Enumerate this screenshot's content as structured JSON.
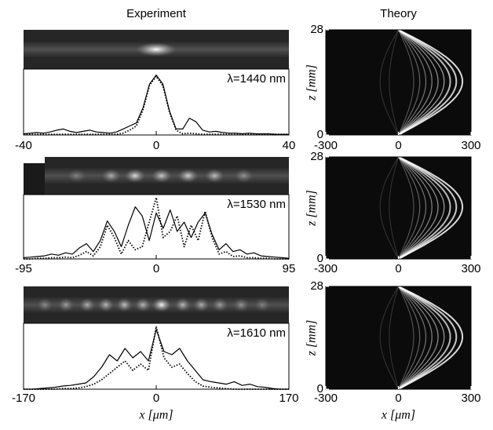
{
  "chart_data": [
    {
      "type": "line",
      "title": "Experiment",
      "annotation": "λ=1440 nm",
      "x": [
        -40,
        -38,
        -36,
        -34,
        -32,
        -30,
        -28,
        -26,
        -24,
        -22,
        -20,
        -18,
        -16,
        -14,
        -12,
        -10,
        -8,
        -6,
        -4,
        -2,
        0,
        2,
        4,
        6,
        8,
        10,
        12,
        14,
        16,
        18,
        20,
        22,
        24,
        26,
        28,
        30,
        32,
        34,
        36,
        38,
        40
      ],
      "series": [
        {
          "color": "#000000",
          "style": "solid",
          "values": [
            0.02,
            0.03,
            0.04,
            0.03,
            0.05,
            0.08,
            0.1,
            0.06,
            0.04,
            0.06,
            0.08,
            0.05,
            0.04,
            0.03,
            0.05,
            0.1,
            0.15,
            0.2,
            0.45,
            0.85,
            1.0,
            0.85,
            0.4,
            0.1,
            0.1,
            0.28,
            0.22,
            0.08,
            0.05,
            0.06,
            0.04,
            0.03,
            0.03,
            0.02,
            0.03,
            0.02,
            0.02,
            0.02,
            0.01,
            0.01,
            0.01
          ]
        },
        {
          "color": "#000000",
          "style": "dotted",
          "values": [
            0.01,
            0.01,
            0.01,
            0.01,
            0.01,
            0.01,
            0.01,
            0.01,
            0.01,
            0.01,
            0.01,
            0.01,
            0.01,
            0.01,
            0.01,
            0.03,
            0.08,
            0.15,
            0.42,
            0.83,
            0.98,
            0.82,
            0.38,
            0.08,
            0.02,
            0.03,
            0.02,
            0.01,
            0.01,
            0.01,
            0.01,
            0.01,
            0.01,
            0.01,
            0.01,
            0.01,
            0.01,
            0.01,
            0.01,
            0.01,
            0.01
          ]
        }
      ],
      "xlim": [
        -40,
        40
      ],
      "xticks": [
        -40,
        0,
        40
      ],
      "ylim": [
        0,
        1.1
      ]
    },
    {
      "type": "line",
      "annotation": "λ=1530 nm",
      "x": [
        -95,
        -90,
        -85,
        -80,
        -75,
        -70,
        -65,
        -60,
        -55,
        -50,
        -45,
        -40,
        -35,
        -30,
        -25,
        -20,
        -15,
        -10,
        -5,
        0,
        5,
        10,
        15,
        20,
        25,
        30,
        35,
        40,
        45,
        50,
        55,
        60,
        65,
        70,
        75,
        80,
        85,
        90,
        95
      ],
      "series": [
        {
          "color": "#000000",
          "style": "solid",
          "values": [
            0.02,
            0.03,
            0.04,
            0.05,
            0.08,
            0.06,
            0.1,
            0.08,
            0.18,
            0.25,
            0.12,
            0.3,
            0.62,
            0.45,
            0.2,
            0.55,
            0.85,
            0.7,
            0.3,
            0.75,
            0.5,
            0.8,
            0.45,
            0.6,
            0.35,
            0.6,
            0.75,
            0.4,
            0.15,
            0.25,
            0.12,
            0.15,
            0.08,
            0.1,
            0.05,
            0.04,
            0.03,
            0.02,
            0.01
          ]
        },
        {
          "color": "#000000",
          "style": "dotted",
          "values": [
            0,
            0,
            0.01,
            0.01,
            0.02,
            0.02,
            0.03,
            0.02,
            0.06,
            0.12,
            0.05,
            0.2,
            0.55,
            0.35,
            0.08,
            0.3,
            0.15,
            0.2,
            0.6,
            1.0,
            0.35,
            0.45,
            0.7,
            0.2,
            0.55,
            0.3,
            0.78,
            0.35,
            0.08,
            0.12,
            0.04,
            0.05,
            0.02,
            0.02,
            0.01,
            0.01,
            0,
            0,
            0
          ]
        }
      ],
      "xlim": [
        -95,
        95
      ],
      "xticks": [
        -95,
        0,
        95
      ],
      "ylim": [
        0,
        1.05
      ]
    },
    {
      "type": "line",
      "annotation": "λ=1610 nm",
      "xlabel": "x [μm]",
      "x": [
        -170,
        -160,
        -150,
        -140,
        -130,
        -120,
        -110,
        -100,
        -90,
        -80,
        -70,
        -60,
        -50,
        -40,
        -30,
        -20,
        -10,
        0,
        10,
        20,
        30,
        40,
        50,
        60,
        70,
        80,
        90,
        100,
        110,
        120,
        130,
        140,
        150,
        160,
        170
      ],
      "series": [
        {
          "color": "#000000",
          "style": "solid",
          "values": [
            0,
            0,
            0.01,
            0.02,
            0.03,
            0.05,
            0.06,
            0.08,
            0.1,
            0.2,
            0.35,
            0.55,
            0.45,
            0.65,
            0.5,
            0.6,
            0.45,
            0.95,
            0.6,
            0.55,
            0.65,
            0.45,
            0.3,
            0.15,
            0.12,
            0.1,
            0.08,
            0.12,
            0.06,
            0.08,
            0.04,
            0.03,
            0.01,
            0,
            0
          ]
        },
        {
          "color": "#000000",
          "style": "dotted",
          "values": [
            0,
            0,
            0,
            0,
            0,
            0.01,
            0.01,
            0.02,
            0.04,
            0.08,
            0.15,
            0.25,
            0.35,
            0.45,
            0.3,
            0.4,
            0.3,
            1.0,
            0.5,
            0.35,
            0.4,
            0.25,
            0.12,
            0.05,
            0.03,
            0.02,
            0.01,
            0,
            0,
            0,
            0,
            0,
            0,
            0,
            0
          ]
        }
      ],
      "xlim": [
        -170,
        170
      ],
      "xticks": [
        -170,
        0,
        170
      ],
      "ylim": [
        0,
        1.05
      ]
    },
    {
      "type": "image",
      "title": "Theory",
      "ylabel": "z [mm]",
      "xlim": [
        -300,
        300
      ],
      "xticks": [
        -300,
        0,
        300
      ],
      "ylim": [
        0,
        28
      ],
      "yticks": [
        0,
        28
      ]
    },
    {
      "type": "image",
      "ylabel": "z [mm]",
      "xlim": [
        -300,
        300
      ],
      "xticks": [
        -300,
        0,
        300
      ],
      "ylim": [
        0,
        28
      ],
      "yticks": [
        0,
        28
      ]
    },
    {
      "type": "image",
      "ylabel": "z [mm]",
      "xlabel": "x [μm]",
      "xlim": [
        -300,
        300
      ],
      "xticks": [
        -300,
        0,
        300
      ],
      "ylim": [
        0,
        28
      ],
      "yticks": [
        0,
        28
      ]
    }
  ]
}
